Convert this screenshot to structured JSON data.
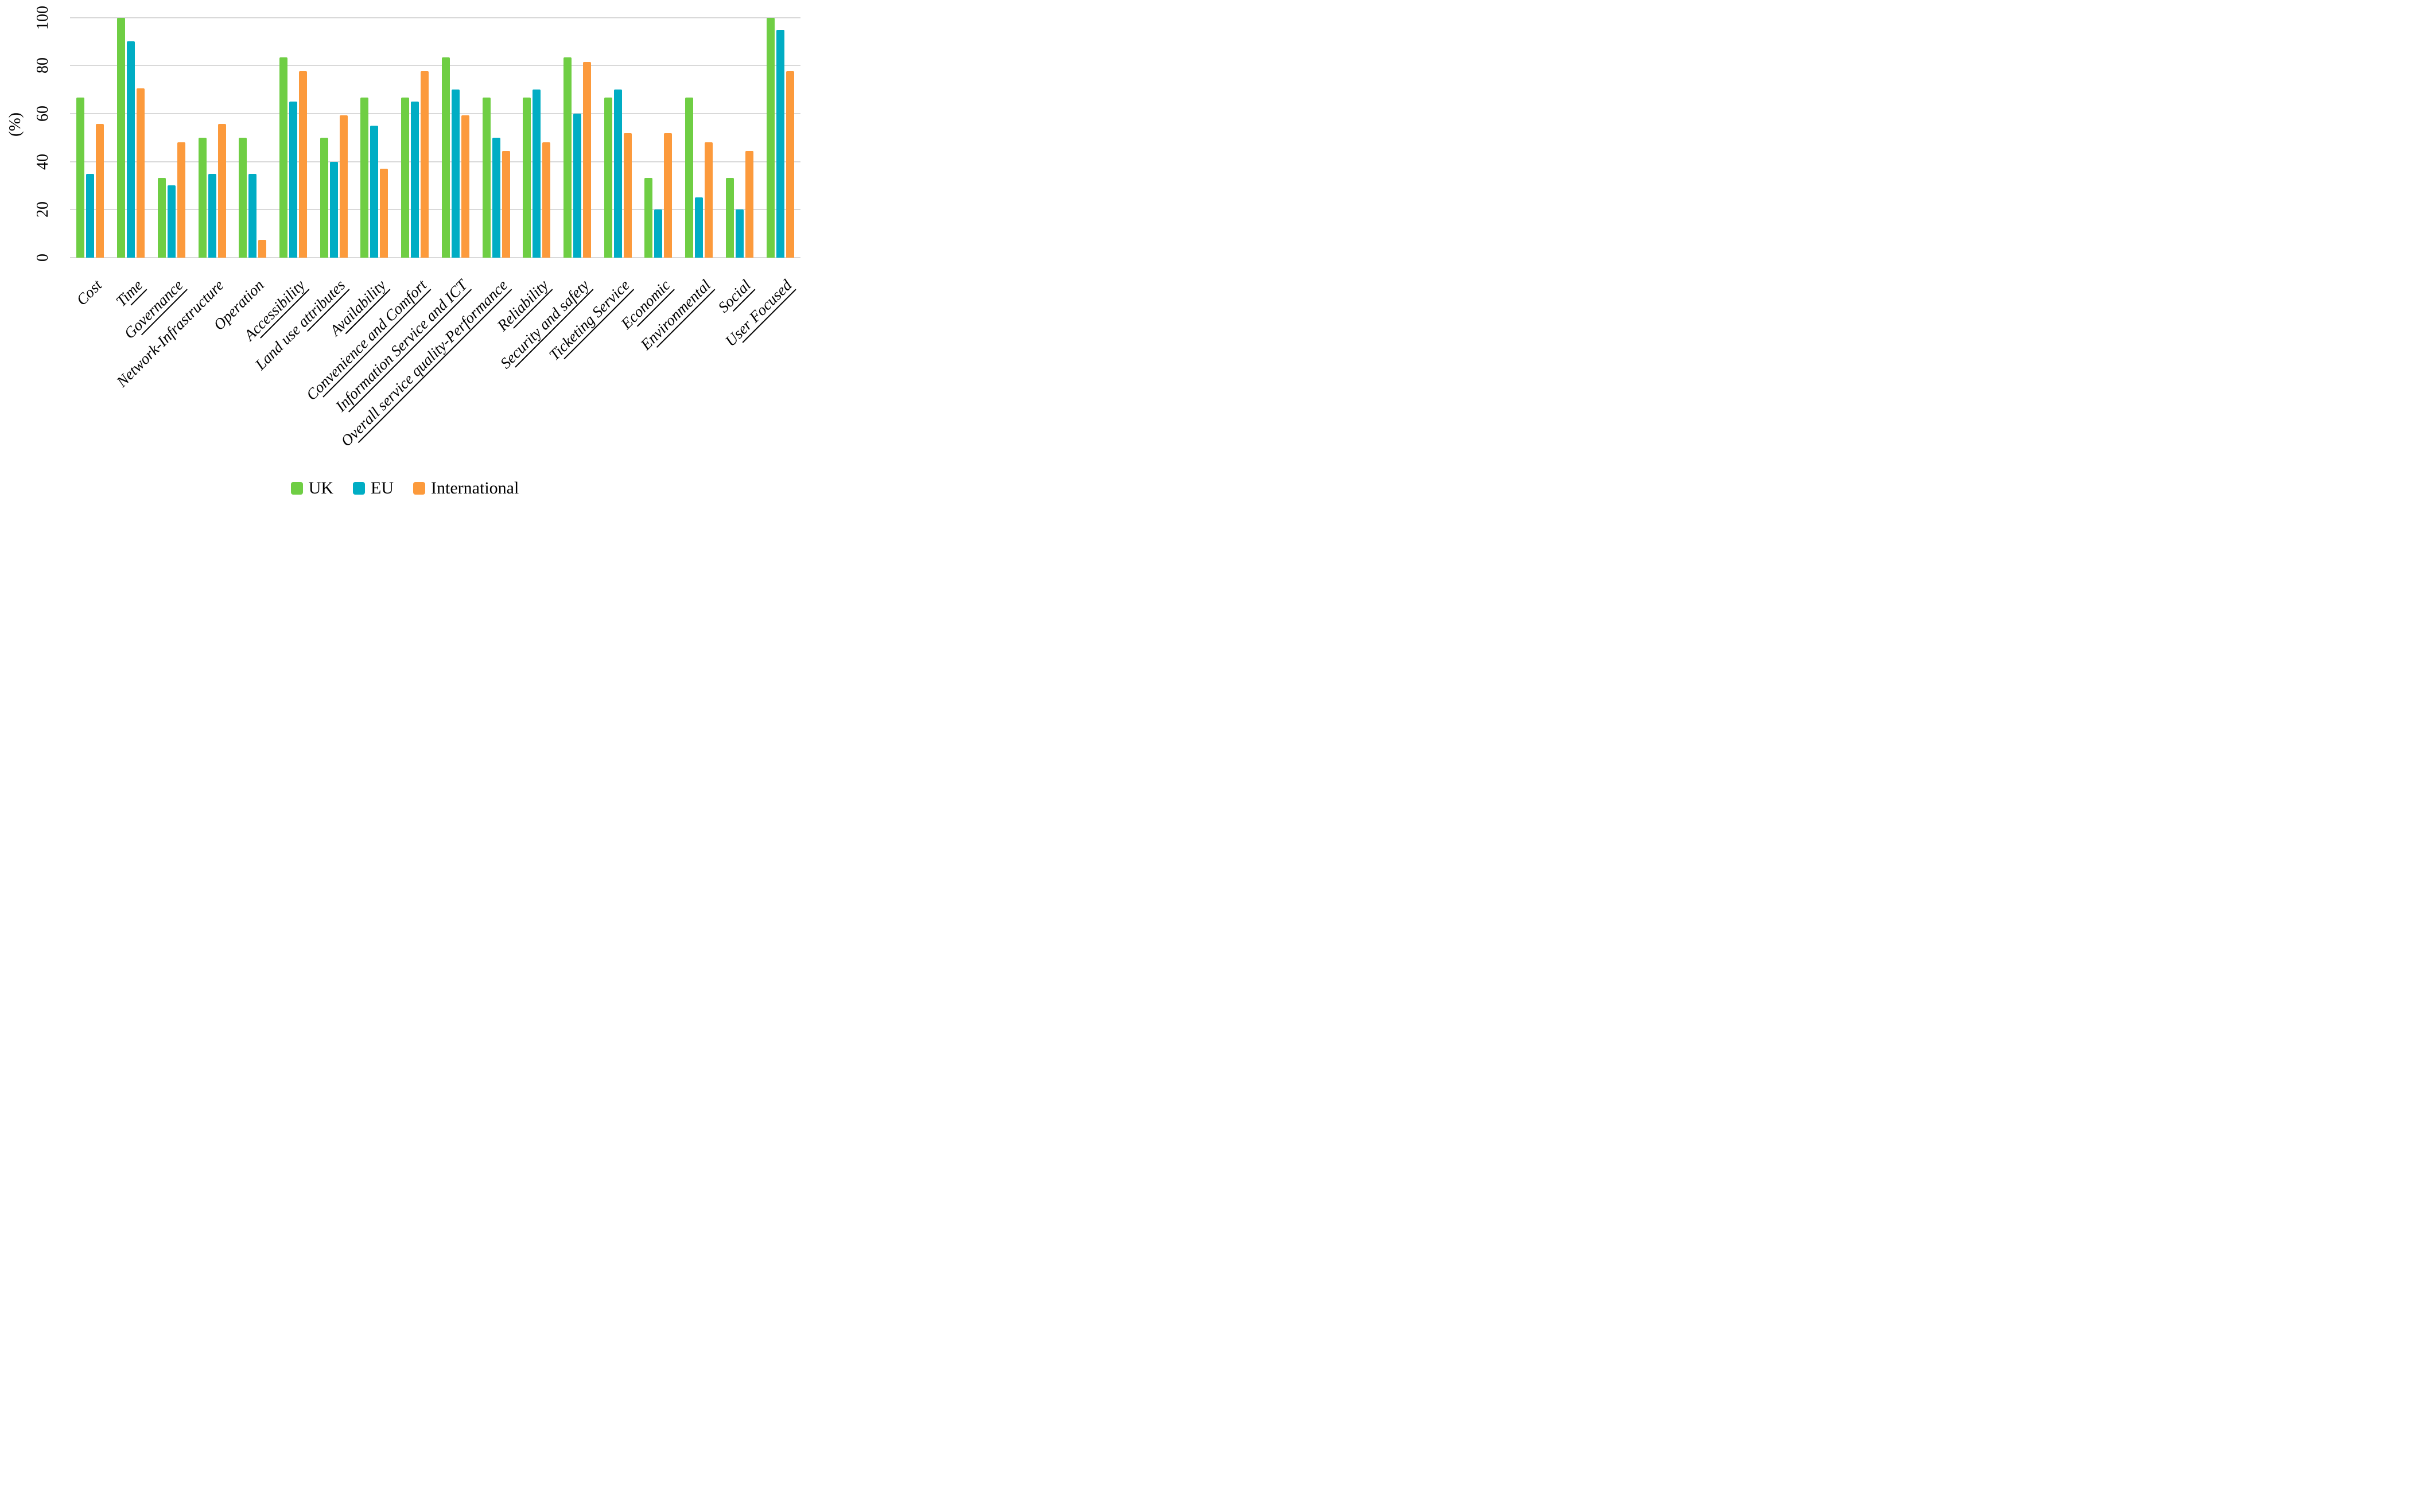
{
  "chart_data": {
    "type": "bar",
    "title": "",
    "xlabel": "",
    "ylabel": "(%)",
    "ylim": [
      0,
      100
    ],
    "yticks": [
      0,
      20,
      40,
      60,
      80,
      100
    ],
    "grid": true,
    "legend_position": "bottom-center",
    "categories": [
      "Cost",
      "Time",
      "Governance",
      "Network-Infrastructure",
      "Operation",
      "Accessibility",
      "Land use attributes",
      "Availability",
      "Convenience and Comfort",
      "Information Service and ICT",
      "Overall service quality-Performance",
      "Reliability",
      "Security and safety",
      "Ticketing Service",
      "Economic",
      "Environmental",
      "Social",
      "User Focused"
    ],
    "category_underline_start": [
      -1,
      1,
      1,
      -1,
      -1,
      1,
      9,
      1,
      1,
      1,
      1,
      1,
      1,
      1,
      1,
      1,
      1,
      1
    ],
    "series": [
      {
        "name": "UK",
        "color": "#6FCE44",
        "values": [
          66.7,
          100,
          33.3,
          50,
          50,
          83.3,
          50,
          66.7,
          66.7,
          83.3,
          66.7,
          66.7,
          83.3,
          66.7,
          33.3,
          66.7,
          33.3,
          100
        ]
      },
      {
        "name": "EU",
        "color": "#00ADC4",
        "values": [
          35,
          90,
          30,
          35,
          35,
          65,
          40,
          55,
          65,
          70,
          50,
          70,
          60,
          70,
          20,
          25,
          20,
          95
        ]
      },
      {
        "name": "International",
        "color": "#FC9A3C",
        "values": [
          55.6,
          70.4,
          48.1,
          55.6,
          7.4,
          77.8,
          59.3,
          37,
          77.8,
          59.3,
          44.4,
          48.1,
          81.5,
          51.9,
          51.9,
          48.1,
          44.4,
          77.8
        ]
      }
    ]
  },
  "colors": {
    "gridline": "#D9D9D9",
    "text": "#000000",
    "background": "#FFFFFF"
  }
}
